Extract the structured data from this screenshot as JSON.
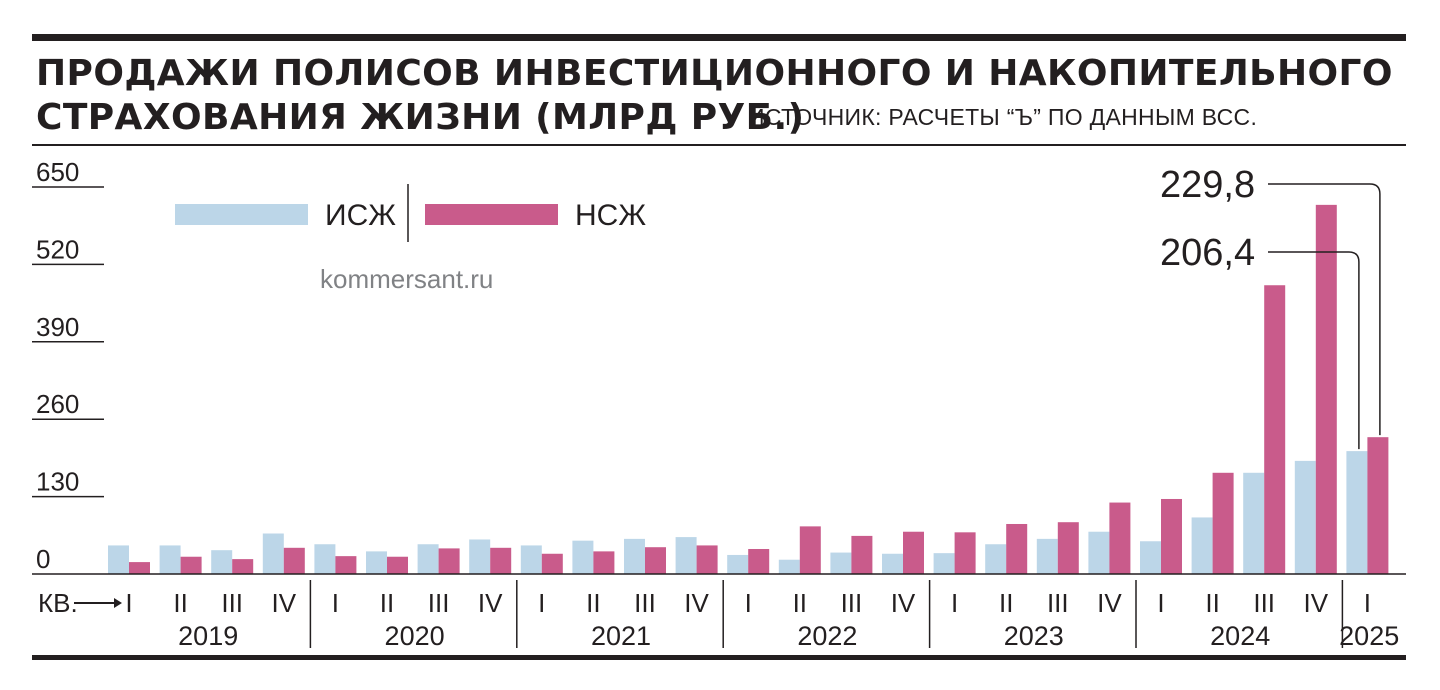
{
  "title_line1": "ПРОДАЖИ ПОЛИСОВ ИНВЕСТИЦИОННОГО И НАКОПИТЕЛЬНОГО",
  "title_line2": "СТРАХОВАНИЯ ЖИЗНИ (МЛРД РУБ.)",
  "source": "ИСТОЧНИК: РАСЧЕТЫ “Ъ” ПО ДАННЫМ ВСС.",
  "watermark": "kommersant.ru",
  "quarter_prefix": "КВ.",
  "colors": {
    "isz": "#bcd6e8",
    "nsz": "#c95b8b",
    "ink": "#231f20",
    "watermark": "#808285"
  },
  "chart_data": {
    "type": "bar",
    "title": "ПРОДАЖИ ПОЛИСОВ ИНВЕСТИЦИОННОГО И НАКОПИТЕЛЬНОГО СТРАХОВАНИЯ ЖИЗНИ (МЛРД РУБ.)",
    "ylim": [
      0,
      650
    ],
    "yticks": [
      0,
      130,
      260,
      390,
      520,
      650
    ],
    "ytick_labels": [
      "0",
      "130",
      "260",
      "390",
      "520",
      "650"
    ],
    "grid": false,
    "legend": "top-left",
    "years": [
      {
        "label": "2019",
        "quarters": [
          "I",
          "II",
          "III",
          "IV"
        ]
      },
      {
        "label": "2020",
        "quarters": [
          "I",
          "II",
          "III",
          "IV"
        ]
      },
      {
        "label": "2021",
        "quarters": [
          "I",
          "II",
          "III",
          "IV"
        ]
      },
      {
        "label": "2022",
        "quarters": [
          "I",
          "II",
          "III",
          "IV"
        ]
      },
      {
        "label": "2023",
        "quarters": [
          "I",
          "II",
          "III",
          "IV"
        ]
      },
      {
        "label": "2024",
        "quarters": [
          "I",
          "II",
          "III",
          "IV"
        ]
      },
      {
        "label": "2025",
        "quarters": [
          "I"
        ]
      }
    ],
    "series": [
      {
        "name": "ИСЖ",
        "color": "#bcd6e8",
        "values": [
          48,
          48,
          40,
          68,
          50,
          38,
          50,
          58,
          48,
          56,
          59,
          62,
          32,
          24,
          36,
          34,
          35,
          50,
          59,
          71,
          55,
          95,
          170,
          190,
          206.4
        ]
      },
      {
        "name": "НСЖ",
        "color": "#c95b8b",
        "values": [
          20,
          29,
          25,
          44,
          30,
          29,
          43,
          44,
          34,
          38,
          45,
          48,
          42,
          80,
          64,
          71,
          70,
          84,
          87,
          120,
          126,
          170,
          485,
          620,
          229.8
        ]
      }
    ],
    "annotations": [
      {
        "text": "229,8",
        "series": "НСЖ",
        "index": 24
      },
      {
        "text": "206,4",
        "series": "ИСЖ",
        "index": 24
      }
    ]
  }
}
